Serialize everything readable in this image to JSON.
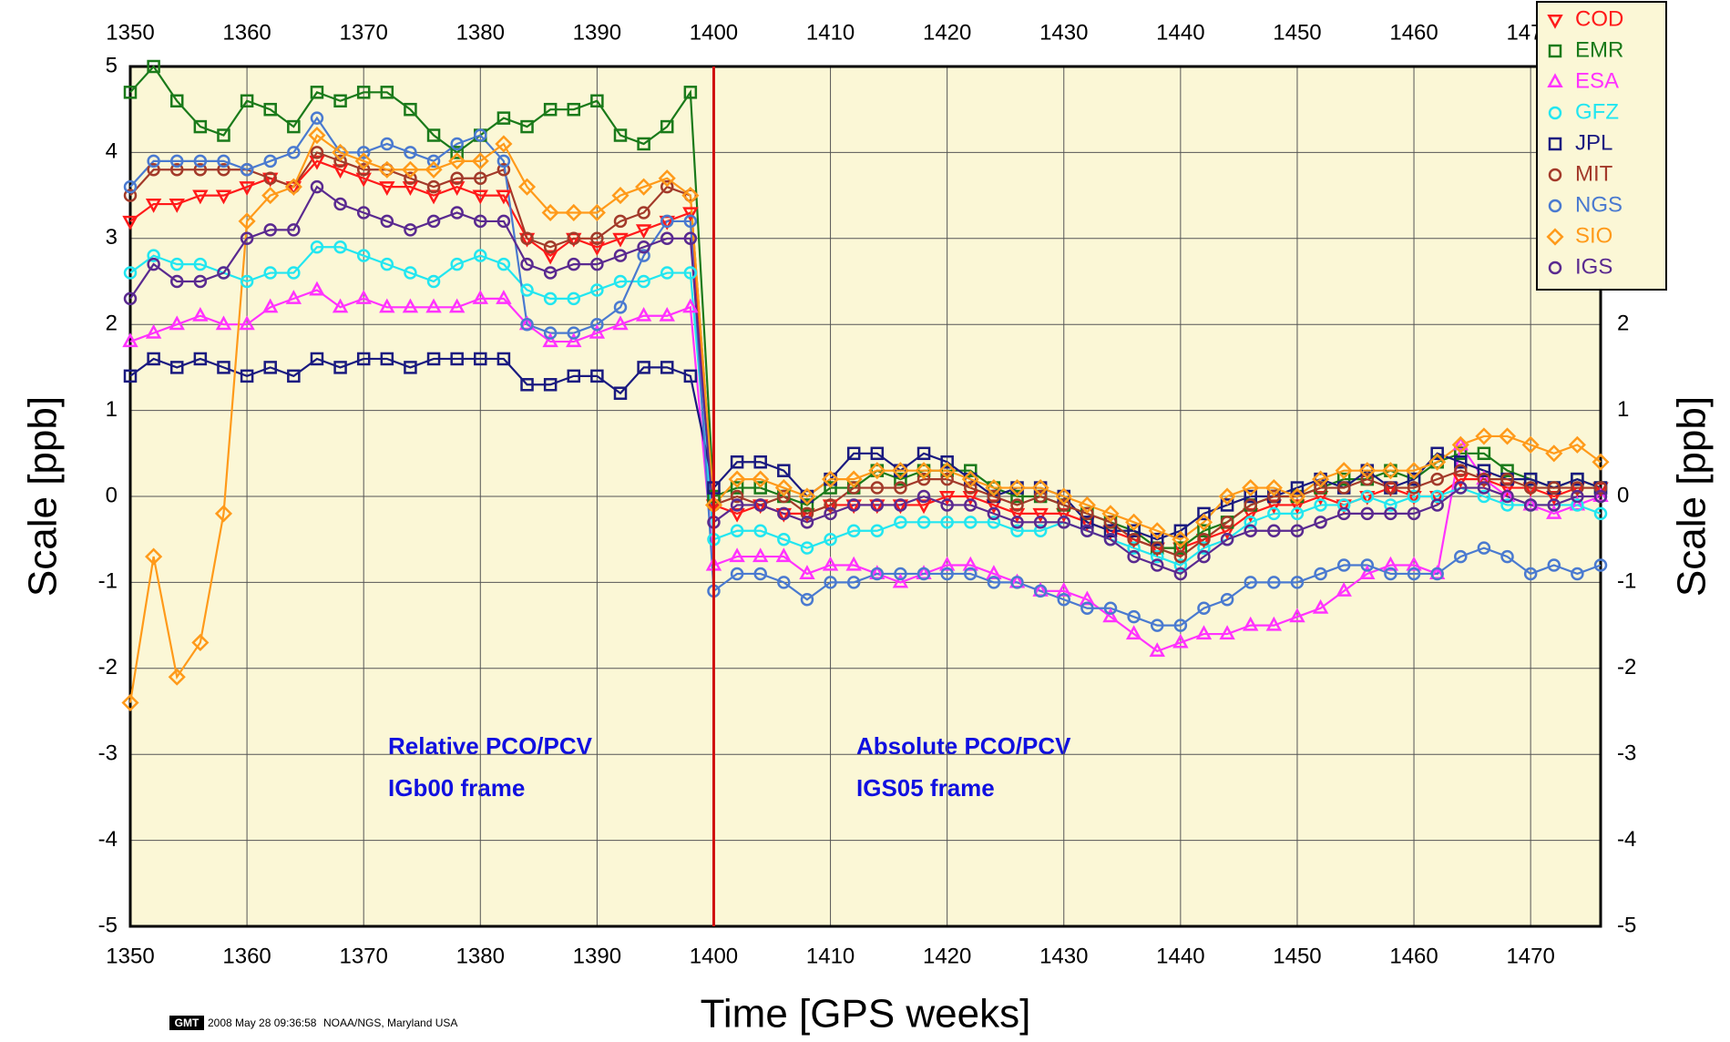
{
  "chart_data": {
    "type": "line",
    "xlabel": "Time [GPS weeks]",
    "ylabel": "Scale [ppb]",
    "x": [
      1350,
      1352,
      1354,
      1356,
      1358,
      1360,
      1362,
      1364,
      1366,
      1368,
      1370,
      1372,
      1374,
      1376,
      1378,
      1380,
      1382,
      1384,
      1386,
      1388,
      1390,
      1392,
      1394,
      1396,
      1398,
      1400,
      1402,
      1404,
      1406,
      1408,
      1410,
      1412,
      1414,
      1416,
      1418,
      1420,
      1422,
      1424,
      1426,
      1428,
      1430,
      1432,
      1434,
      1436,
      1438,
      1440,
      1442,
      1444,
      1446,
      1448,
      1450,
      1452,
      1454,
      1456,
      1458,
      1460,
      1462,
      1464,
      1466,
      1468,
      1470,
      1472,
      1474,
      1476
    ],
    "series": [
      {
        "name": "COD",
        "color": "#ff1a1a",
        "marker": "triangle-down",
        "values": [
          3.2,
          3.4,
          3.4,
          3.5,
          3.5,
          3.6,
          3.7,
          3.6,
          3.9,
          3.8,
          3.7,
          3.6,
          3.6,
          3.5,
          3.6,
          3.5,
          3.5,
          3.0,
          2.8,
          3.0,
          2.9,
          3.0,
          3.1,
          3.2,
          3.3,
          -0.1,
          -0.2,
          -0.1,
          -0.2,
          -0.2,
          -0.1,
          -0.1,
          -0.1,
          -0.1,
          -0.1,
          0.0,
          0.0,
          -0.1,
          -0.2,
          -0.2,
          -0.2,
          -0.3,
          -0.4,
          -0.5,
          -0.6,
          -0.6,
          -0.5,
          -0.4,
          -0.2,
          -0.1,
          -0.1,
          0.0,
          -0.1,
          0.0,
          0.1,
          0.0,
          0.0,
          0.2,
          0.2,
          0.1,
          0.1,
          0.0,
          0.1,
          0.1
        ]
      },
      {
        "name": "EMR",
        "color": "#1a7a1a",
        "marker": "square",
        "values": [
          4.7,
          5.0,
          4.6,
          4.3,
          4.2,
          4.6,
          4.5,
          4.3,
          4.7,
          4.6,
          4.7,
          4.7,
          4.5,
          4.2,
          4.0,
          4.2,
          4.4,
          4.3,
          4.5,
          4.5,
          4.6,
          4.2,
          4.1,
          4.3,
          4.7,
          0.0,
          0.1,
          0.1,
          0.0,
          -0.1,
          0.1,
          0.1,
          0.3,
          0.2,
          0.3,
          0.3,
          0.3,
          0.1,
          0.0,
          0.0,
          -0.1,
          -0.2,
          -0.3,
          -0.4,
          -0.6,
          -0.6,
          -0.4,
          -0.3,
          -0.1,
          0.0,
          0.0,
          0.1,
          0.2,
          0.2,
          0.3,
          0.2,
          0.4,
          0.5,
          0.5,
          0.3,
          0.2,
          0.1,
          0.2,
          0.1
        ]
      },
      {
        "name": "ESA",
        "color": "#ff33ff",
        "marker": "triangle",
        "values": [
          1.8,
          1.9,
          2.0,
          2.1,
          2.0,
          2.0,
          2.2,
          2.3,
          2.4,
          2.2,
          2.3,
          2.2,
          2.2,
          2.2,
          2.2,
          2.3,
          2.3,
          2.0,
          1.8,
          1.8,
          1.9,
          2.0,
          2.1,
          2.1,
          2.2,
          -0.8,
          -0.7,
          -0.7,
          -0.7,
          -0.9,
          -0.8,
          -0.8,
          -0.9,
          -1.0,
          -0.9,
          -0.8,
          -0.8,
          -0.9,
          -1.0,
          -1.1,
          -1.1,
          -1.2,
          -1.4,
          -1.6,
          -1.8,
          -1.7,
          -1.6,
          -1.6,
          -1.5,
          -1.5,
          -1.4,
          -1.3,
          -1.1,
          -0.9,
          -0.8,
          -0.8,
          -0.9,
          0.6,
          0.2,
          0.0,
          -0.1,
          -0.2,
          -0.1,
          0.0
        ]
      },
      {
        "name": "GFZ",
        "color": "#22e6f0",
        "marker": "circle",
        "values": [
          2.6,
          2.8,
          2.7,
          2.7,
          2.6,
          2.5,
          2.6,
          2.6,
          2.9,
          2.9,
          2.8,
          2.7,
          2.6,
          2.5,
          2.7,
          2.8,
          2.7,
          2.4,
          2.3,
          2.3,
          2.4,
          2.5,
          2.5,
          2.6,
          2.6,
          -0.5,
          -0.4,
          -0.4,
          -0.5,
          -0.6,
          -0.5,
          -0.4,
          -0.4,
          -0.3,
          -0.3,
          -0.3,
          -0.3,
          -0.3,
          -0.4,
          -0.4,
          -0.3,
          -0.4,
          -0.5,
          -0.6,
          -0.7,
          -0.8,
          -0.6,
          -0.5,
          -0.3,
          -0.2,
          -0.2,
          -0.1,
          -0.1,
          0.0,
          -0.1,
          0.0,
          0.0,
          0.1,
          0.0,
          -0.1,
          -0.1,
          -0.1,
          -0.1,
          -0.2
        ]
      },
      {
        "name": "JPL",
        "color": "#1a1a80",
        "marker": "square",
        "values": [
          1.4,
          1.6,
          1.5,
          1.6,
          1.5,
          1.4,
          1.5,
          1.4,
          1.6,
          1.5,
          1.6,
          1.6,
          1.5,
          1.6,
          1.6,
          1.6,
          1.6,
          1.3,
          1.3,
          1.4,
          1.4,
          1.2,
          1.5,
          1.5,
          1.4,
          0.1,
          0.4,
          0.4,
          0.3,
          0.0,
          0.2,
          0.5,
          0.5,
          0.3,
          0.5,
          0.4,
          0.2,
          0.0,
          0.1,
          0.1,
          0.0,
          -0.3,
          -0.4,
          -0.4,
          -0.5,
          -0.4,
          -0.2,
          -0.1,
          0.0,
          0.0,
          0.1,
          0.2,
          0.1,
          0.3,
          0.1,
          0.2,
          0.5,
          0.4,
          0.3,
          0.2,
          0.2,
          0.1,
          0.2,
          0.1
        ]
      },
      {
        "name": "MIT",
        "color": "#a33a2a",
        "marker": "circle",
        "values": [
          3.5,
          3.8,
          3.8,
          3.8,
          3.8,
          3.8,
          3.7,
          3.6,
          4.0,
          3.9,
          3.8,
          3.8,
          3.7,
          3.6,
          3.7,
          3.7,
          3.8,
          3.0,
          2.9,
          3.0,
          3.0,
          3.2,
          3.3,
          3.6,
          3.5,
          -0.1,
          0.0,
          -0.1,
          0.0,
          -0.2,
          -0.1,
          0.1,
          0.1,
          0.1,
          0.2,
          0.2,
          0.1,
          0.0,
          -0.1,
          0.0,
          -0.1,
          -0.2,
          -0.3,
          -0.5,
          -0.6,
          -0.7,
          -0.5,
          -0.3,
          -0.1,
          0.0,
          0.0,
          0.1,
          0.1,
          0.2,
          0.1,
          0.1,
          0.2,
          0.3,
          0.2,
          0.2,
          0.1,
          0.1,
          0.1,
          0.1
        ]
      },
      {
        "name": "NGS",
        "color": "#4a7ad0",
        "marker": "circle",
        "values": [
          3.6,
          3.9,
          3.9,
          3.9,
          3.9,
          3.8,
          3.9,
          4.0,
          4.4,
          4.0,
          4.0,
          4.1,
          4.0,
          3.9,
          4.1,
          4.2,
          3.9,
          2.0,
          1.9,
          1.9,
          2.0,
          2.2,
          2.8,
          3.2,
          3.2,
          -1.1,
          -0.9,
          -0.9,
          -1.0,
          -1.2,
          -1.0,
          -1.0,
          -0.9,
          -0.9,
          -0.9,
          -0.9,
          -0.9,
          -1.0,
          -1.0,
          -1.1,
          -1.2,
          -1.3,
          -1.3,
          -1.4,
          -1.5,
          -1.5,
          -1.3,
          -1.2,
          -1.0,
          -1.0,
          -1.0,
          -0.9,
          -0.8,
          -0.8,
          -0.9,
          -0.9,
          -0.9,
          -0.7,
          -0.6,
          -0.7,
          -0.9,
          -0.8,
          -0.9,
          -0.8
        ]
      },
      {
        "name": "SIO",
        "color": "#ff9a1a",
        "marker": "diamond",
        "values": [
          -2.4,
          -0.7,
          -2.1,
          -1.7,
          -0.2,
          3.2,
          3.5,
          3.6,
          4.2,
          4.0,
          3.9,
          3.8,
          3.8,
          3.8,
          3.9,
          3.9,
          4.1,
          3.6,
          3.3,
          3.3,
          3.3,
          3.5,
          3.6,
          3.7,
          3.5,
          -0.1,
          0.2,
          0.2,
          0.1,
          0.0,
          0.2,
          0.2,
          0.3,
          0.3,
          0.3,
          0.3,
          0.2,
          0.1,
          0.1,
          0.1,
          0.0,
          -0.1,
          -0.2,
          -0.3,
          -0.4,
          -0.5,
          -0.3,
          0.0,
          0.1,
          0.1,
          0.0,
          0.2,
          0.3,
          0.3,
          0.3,
          0.3,
          0.4,
          0.6,
          0.7,
          0.7,
          0.6,
          0.5,
          0.6,
          0.4
        ]
      },
      {
        "name": "IGS",
        "color": "#5a2a90",
        "marker": "circle",
        "values": [
          2.3,
          2.7,
          2.5,
          2.5,
          2.6,
          3.0,
          3.1,
          3.1,
          3.6,
          3.4,
          3.3,
          3.2,
          3.1,
          3.2,
          3.3,
          3.2,
          3.2,
          2.7,
          2.6,
          2.7,
          2.7,
          2.8,
          2.9,
          3.0,
          3.0,
          -0.3,
          -0.1,
          -0.1,
          -0.2,
          -0.3,
          -0.2,
          -0.1,
          -0.1,
          -0.1,
          0.0,
          -0.1,
          -0.1,
          -0.2,
          -0.3,
          -0.3,
          -0.3,
          -0.4,
          -0.5,
          -0.7,
          -0.8,
          -0.9,
          -0.7,
          -0.5,
          -0.4,
          -0.4,
          -0.4,
          -0.3,
          -0.2,
          -0.2,
          -0.2,
          -0.2,
          -0.1,
          0.1,
          0.1,
          0.0,
          -0.1,
          -0.1,
          0.0,
          0.0
        ]
      }
    ],
    "xlim": [
      1350,
      1476
    ],
    "ylim": [
      -5,
      5
    ],
    "xticks": [
      1350,
      1360,
      1370,
      1380,
      1390,
      1400,
      1410,
      1420,
      1430,
      1440,
      1450,
      1460,
      1470
    ],
    "yticks": [
      -5,
      -4,
      -3,
      -2,
      -1,
      0,
      1,
      2,
      3,
      4,
      5
    ],
    "grid": true,
    "legend": "upper right",
    "vline": {
      "x": 1400,
      "color": "#d01010"
    },
    "annotations": [
      "Relative PCO/PCV",
      "IGb00 frame",
      "Absolute PCO/PCV",
      "IGS05 frame"
    ],
    "footer": {
      "logo": "GMT",
      "timestamp": "2008 May 28 09:36:58",
      "source": "NOAA/NGS, Maryland USA"
    }
  }
}
